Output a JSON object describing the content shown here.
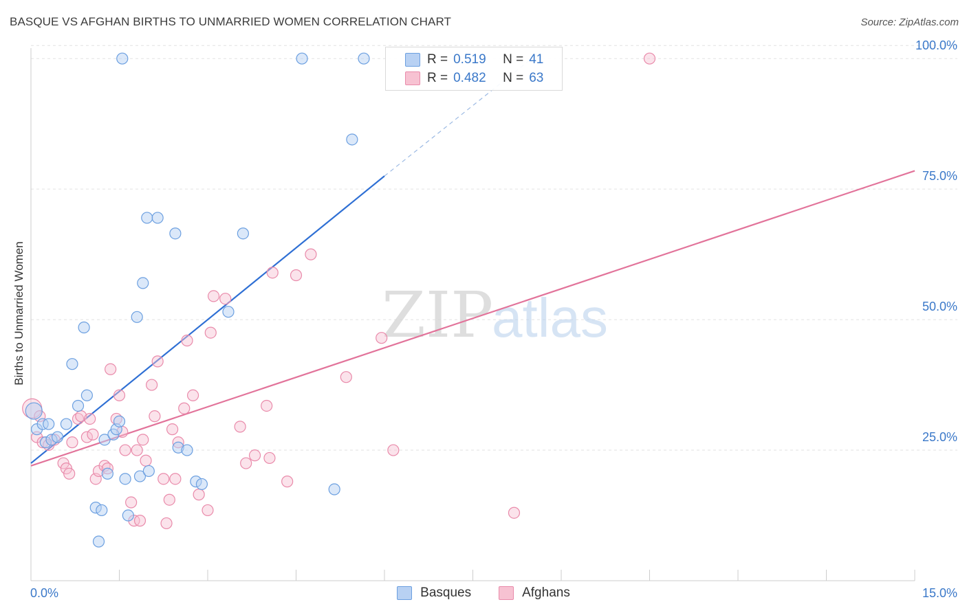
{
  "title": "BASQUE VS AFGHAN BIRTHS TO UNMARRIED WOMEN CORRELATION CHART",
  "source": "Source: ZipAtlas.com",
  "watermark": {
    "zip": "ZIP",
    "atlas": "atlas"
  },
  "legend": {
    "r_label": "R =",
    "n_label": "N =",
    "basque": {
      "r": "0.519",
      "n": "41"
    },
    "afghan": {
      "r": "0.482",
      "n": "63"
    }
  },
  "bottom_legend": {
    "basques": "Basques",
    "afghans": "Afghans"
  },
  "colors": {
    "basque_fill": "#b8d1f3",
    "basque_stroke": "#6b9fe0",
    "basque_line": "#2e6fd4",
    "afghan_fill": "#f7c2d2",
    "afghan_stroke": "#e98aaa",
    "afghan_line": "#e2739a",
    "tick_blue": "#3a78c9",
    "grid": "#e2e2e2"
  },
  "chart_data": {
    "type": "scatter",
    "title": "BASQUE VS AFGHAN BIRTHS TO UNMARRIED WOMEN CORRELATION CHART",
    "xlabel": "",
    "ylabel": "Births to Unmarried Women",
    "xlim": [
      0,
      15
    ],
    "ylim": [
      0,
      102
    ],
    "x_tick_labels": [
      "0.0%",
      "15.0%"
    ],
    "y_ticks": [
      25,
      50,
      75,
      100
    ],
    "y_tick_labels": [
      "25.0%",
      "50.0%",
      "75.0%",
      "100.0%"
    ],
    "grid": true,
    "series": [
      {
        "name": "Basques",
        "r": 0.519,
        "n": 41,
        "trend": {
          "x0": 0,
          "y0": 22.5,
          "x1": 6.0,
          "y1": 77.5,
          "dash_to_x": 8.5,
          "dash_to_y": 100
        },
        "points": [
          [
            0.05,
            32.5
          ],
          [
            0.1,
            29.0
          ],
          [
            0.2,
            30.0
          ],
          [
            0.25,
            26.5
          ],
          [
            0.3,
            30.0
          ],
          [
            0.35,
            27.0
          ],
          [
            0.45,
            27.5
          ],
          [
            0.6,
            30.0
          ],
          [
            0.7,
            41.5
          ],
          [
            0.8,
            33.5
          ],
          [
            0.9,
            48.5
          ],
          [
            0.95,
            35.5
          ],
          [
            1.1,
            14.0
          ],
          [
            1.15,
            7.5
          ],
          [
            1.2,
            13.5
          ],
          [
            1.25,
            27.0
          ],
          [
            1.3,
            20.5
          ],
          [
            1.4,
            28.0
          ],
          [
            1.45,
            29.0
          ],
          [
            1.5,
            30.5
          ],
          [
            1.55,
            100.0
          ],
          [
            1.6,
            19.5
          ],
          [
            1.65,
            12.5
          ],
          [
            1.8,
            50.5
          ],
          [
            1.85,
            20.0
          ],
          [
            1.9,
            57.0
          ],
          [
            1.97,
            69.5
          ],
          [
            2.0,
            21.0
          ],
          [
            2.15,
            69.5
          ],
          [
            2.45,
            66.5
          ],
          [
            2.5,
            25.5
          ],
          [
            2.65,
            25.0
          ],
          [
            2.8,
            19.0
          ],
          [
            2.9,
            18.5
          ],
          [
            3.35,
            51.5
          ],
          [
            3.6,
            66.5
          ],
          [
            4.6,
            100.0
          ],
          [
            5.15,
            17.5
          ],
          [
            5.45,
            84.5
          ],
          [
            5.65,
            100.0
          ]
        ]
      },
      {
        "name": "Afghans",
        "r": 0.482,
        "n": 63,
        "trend": {
          "x0": 0,
          "y0": 22.0,
          "x1": 15.0,
          "y1": 78.5
        },
        "points": [
          [
            0.02,
            33.0
          ],
          [
            0.1,
            27.5
          ],
          [
            0.15,
            31.5
          ],
          [
            0.2,
            26.5
          ],
          [
            0.3,
            26.0
          ],
          [
            0.4,
            27.0
          ],
          [
            0.55,
            22.5
          ],
          [
            0.6,
            21.5
          ],
          [
            0.65,
            20.5
          ],
          [
            0.7,
            26.5
          ],
          [
            0.8,
            31.0
          ],
          [
            0.85,
            31.5
          ],
          [
            0.95,
            27.5
          ],
          [
            1.0,
            31.0
          ],
          [
            1.05,
            28.0
          ],
          [
            1.1,
            19.5
          ],
          [
            1.15,
            21.0
          ],
          [
            1.25,
            22.0
          ],
          [
            1.3,
            21.5
          ],
          [
            1.35,
            40.5
          ],
          [
            1.45,
            31.0
          ],
          [
            1.5,
            35.5
          ],
          [
            1.55,
            28.5
          ],
          [
            1.6,
            25.0
          ],
          [
            1.7,
            15.0
          ],
          [
            1.75,
            11.5
          ],
          [
            1.8,
            25.0
          ],
          [
            1.85,
            11.5
          ],
          [
            1.9,
            27.0
          ],
          [
            1.95,
            23.0
          ],
          [
            2.05,
            37.5
          ],
          [
            2.1,
            31.5
          ],
          [
            2.15,
            42.0
          ],
          [
            2.25,
            19.5
          ],
          [
            2.3,
            11.0
          ],
          [
            2.35,
            15.5
          ],
          [
            2.4,
            29.0
          ],
          [
            2.45,
            19.5
          ],
          [
            2.5,
            26.5
          ],
          [
            2.6,
            33.0
          ],
          [
            2.65,
            46.0
          ],
          [
            2.75,
            35.5
          ],
          [
            2.85,
            16.5
          ],
          [
            3.0,
            13.5
          ],
          [
            3.05,
            47.5
          ],
          [
            3.1,
            54.5
          ],
          [
            3.3,
            54.0
          ],
          [
            3.55,
            29.5
          ],
          [
            3.65,
            22.5
          ],
          [
            3.8,
            24.0
          ],
          [
            4.0,
            33.5
          ],
          [
            4.05,
            23.5
          ],
          [
            4.1,
            59.0
          ],
          [
            4.35,
            19.0
          ],
          [
            4.5,
            58.5
          ],
          [
            4.75,
            62.5
          ],
          [
            5.35,
            39.0
          ],
          [
            5.95,
            46.5
          ],
          [
            6.15,
            25.0
          ],
          [
            8.2,
            13.0
          ],
          [
            10.5,
            100.0
          ]
        ]
      }
    ]
  }
}
